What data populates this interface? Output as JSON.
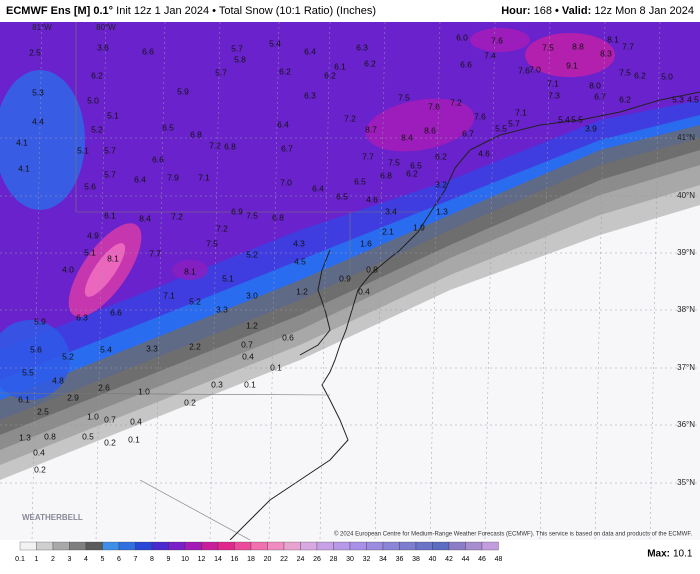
{
  "header": {
    "model": "ECMWF Ens [M] 0.1°",
    "subtitle": "Init 12z 1 Jan 2024 • Total Snow (10:1 Ratio) (Inches)",
    "hour_label": "Hour:",
    "hour": "168",
    "valid_label": "• Valid:",
    "valid": "12z Mon 8 Jan 2024"
  },
  "map": {
    "snow_labels": [
      "2.5",
      "3.6",
      "6.6",
      "6.2",
      "5.3",
      "5.0",
      "4.4",
      "5.1",
      "5.2",
      "4.1",
      "5.1",
      "5.7",
      "4.1",
      "5.7",
      "6.4",
      "5.6",
      "6.6",
      "6.5",
      "6.8",
      "7.2",
      "6.8",
      "7.9",
      "7.1",
      "5.9",
      "5.7",
      "5.7",
      "5.8",
      "5.4",
      "6.4",
      "6.2",
      "6.2",
      "6.1",
      "6.3",
      "6.2",
      "6.3",
      "6.4",
      "6.7",
      "7.2",
      "8.7",
      "8.4",
      "8.6",
      "7.5",
      "7.6",
      "7.2",
      "6.7",
      "7.6",
      "7.7",
      "7.5",
      "6.5",
      "6.2",
      "6.2",
      "4.6",
      "5.5",
      "5.7",
      "7.1",
      "5.4",
      "5.5",
      "3.9",
      "7.1",
      "7.3",
      "7.6",
      "7.0",
      "7.4",
      "7.6",
      "7.5",
      "8.8",
      "8.3",
      "9.1",
      "8.1",
      "7.7",
      "7.5",
      "8.0",
      "6.7",
      "6.2",
      "6.2",
      "5.0",
      "5.3",
      "4.5",
      "6.6",
      "6.0",
      "7.0",
      "6.4",
      "6.5",
      "6.8",
      "6.5",
      "4.6",
      "3.2",
      "3.4",
      "2.1",
      "1.9",
      "1.3",
      "6.9",
      "7.5",
      "6.8",
      "6.1",
      "8.4",
      "7.2",
      "7.2",
      "7.5",
      "8.1",
      "5.1",
      "5.2",
      "4.3",
      "4.5",
      "4.9",
      "5.1",
      "7.7",
      "8.1",
      "4.0",
      "7.1",
      "5.2",
      "3.0",
      "3.3",
      "1.6",
      "0.9",
      "0.8",
      "0.4",
      "1.2",
      "1.2",
      "0.6",
      "0.7",
      "0.4",
      "6.3",
      "6.6",
      "5.9",
      "5.6",
      "5.2",
      "5.4",
      "3.3",
      "2.2",
      "0.1",
      "5.5",
      "4.8",
      "2.6",
      "1.0",
      "0.3",
      "0.1",
      "6.1",
      "2.9",
      "0.2",
      "2.5",
      "1.0",
      "0.7",
      "0.4",
      "1.3",
      "0.8",
      "0.5",
      "0.2",
      "0.1",
      "0.4",
      "0.2"
    ],
    "lat_labels": [
      "41°N",
      "40°N",
      "39°N",
      "38°N",
      "37°N",
      "36°N",
      "35°N"
    ],
    "lon_labels": [
      "81°W",
      "80°W"
    ],
    "copyright": "© 2024 European Centre for Medium-Range Weather Forecasts (ECMWF). This service is based on data and products of the ECMWF.",
    "logo": "WEATHERBELL"
  },
  "legend": {
    "ticks": [
      0.1,
      1,
      2,
      3,
      4,
      5,
      6,
      7,
      8,
      9,
      10,
      12,
      14,
      16,
      18,
      20,
      22,
      24,
      26,
      28,
      30,
      32,
      34,
      36,
      38,
      40,
      42,
      44,
      46,
      48
    ],
    "colors": [
      "#f2f2f2",
      "#cfcfcf",
      "#a9a9a9",
      "#7f7f7f",
      "#5b5b5b",
      "#3f8fe8",
      "#2f6fe0",
      "#2a48d8",
      "#4a2ad0",
      "#7a20c8",
      "#a41cb8",
      "#c81e9c",
      "#e0288c",
      "#ec4a9c",
      "#f070b0",
      "#f08cc0",
      "#e8a4d0",
      "#d8a8e0",
      "#c8a0e8",
      "#b898e8",
      "#a890e8",
      "#9c8ce0",
      "#8c84d8",
      "#7c7cd0",
      "#6c74c8",
      "#5c6cc0",
      "#8c7cc8",
      "#a88cd0",
      "#c49ce0"
    ],
    "max_label": "Max:",
    "max_value": 10.1
  }
}
